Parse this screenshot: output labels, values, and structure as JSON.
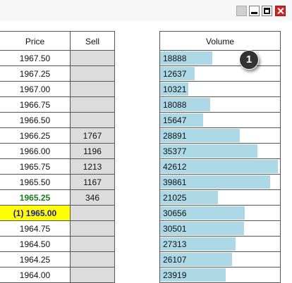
{
  "window": {
    "controls": [
      "blank",
      "minimize",
      "maximize",
      "close"
    ]
  },
  "headers": {
    "price": "Price",
    "sell": "Sell",
    "volume": "Volume"
  },
  "max_volume": 43500,
  "rows": [
    {
      "price": "1967.50",
      "sell": "",
      "volume": "18888",
      "style": "normal"
    },
    {
      "price": "1967.25",
      "sell": "",
      "volume": "12637",
      "style": "normal"
    },
    {
      "price": "1967.00",
      "sell": "",
      "volume": "10321",
      "style": "normal"
    },
    {
      "price": "1966.75",
      "sell": "",
      "volume": "18088",
      "style": "normal"
    },
    {
      "price": "1966.50",
      "sell": "",
      "volume": "15647",
      "style": "normal"
    },
    {
      "price": "1966.25",
      "sell": "1767",
      "volume": "28891",
      "style": "normal"
    },
    {
      "price": "1966.00",
      "sell": "1196",
      "volume": "35377",
      "style": "normal"
    },
    {
      "price": "1965.75",
      "sell": "1213",
      "volume": "42612",
      "style": "normal"
    },
    {
      "price": "1965.50",
      "sell": "1167",
      "volume": "39861",
      "style": "normal"
    },
    {
      "price": "1965.25",
      "sell": "346",
      "volume": "21025",
      "style": "green"
    },
    {
      "price": "(1) 1965.00",
      "sell": "",
      "volume": "30656",
      "style": "highlight"
    },
    {
      "price": "1964.75",
      "sell": "",
      "volume": "30501",
      "style": "normal"
    },
    {
      "price": "1964.50",
      "sell": "",
      "volume": "27313",
      "style": "normal"
    },
    {
      "price": "1964.25",
      "sell": "",
      "volume": "26107",
      "style": "normal"
    },
    {
      "price": "1964.00",
      "sell": "",
      "volume": "23919",
      "style": "normal"
    }
  ],
  "marker": {
    "label": "1"
  }
}
